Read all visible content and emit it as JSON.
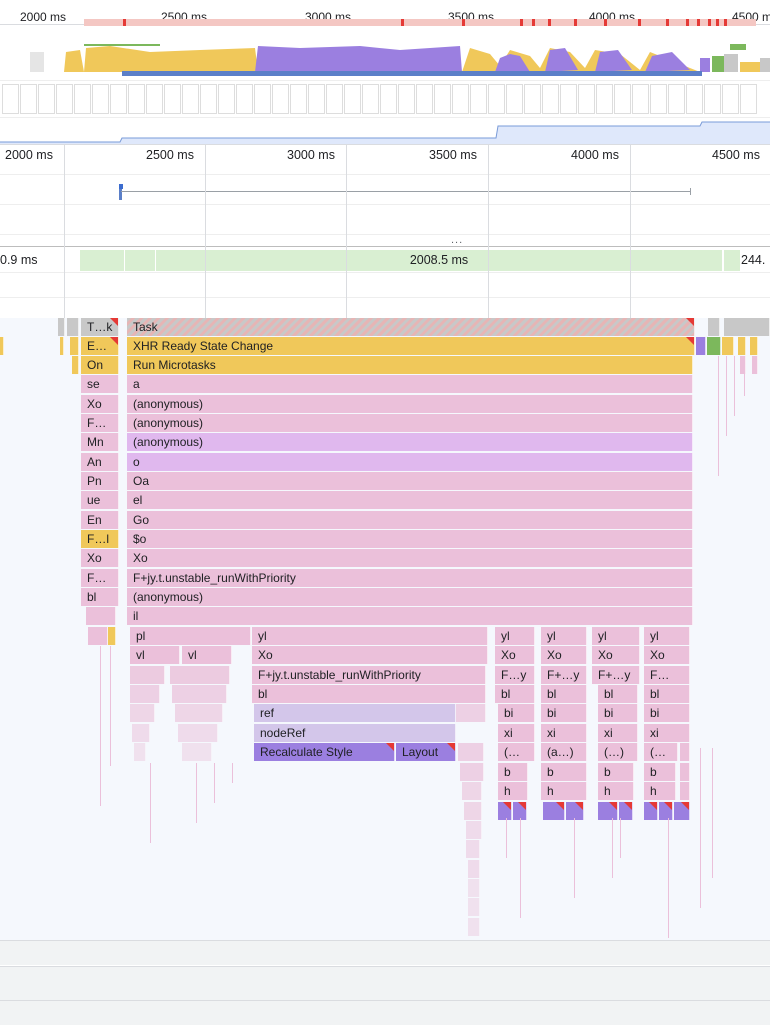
{
  "overview": {
    "ticks": [
      "2000 ms",
      "2500 ms",
      "3000 ms",
      "3500 ms",
      "4000 ms",
      "4500 m"
    ],
    "cpu_colors": {
      "scripting": "#f0c85a",
      "rendering": "#9b7fe0",
      "idle": "#c8c8c8",
      "painting": "#7cb85c"
    },
    "screenshots_icon": "screenshot-thumb-icon"
  },
  "main_ruler": {
    "ticks": [
      "2000 ms",
      "2500 ms",
      "3000 ms",
      "3500 ms",
      "4000 ms",
      "4500 ms"
    ]
  },
  "divider_handle": "...",
  "frames": {
    "left": "0.9 ms",
    "center": "2008.5 ms",
    "right": "244."
  },
  "flame": {
    "left_column": [
      "T…k",
      "E…",
      "On",
      "se",
      "Xo",
      "F…",
      "Mn",
      "An",
      "Pn",
      "ue",
      "En",
      "F…l",
      "Xo",
      "F…",
      "bl"
    ],
    "main_column": [
      "Task",
      "XHR Ready State Change",
      "Run Microtasks",
      "a",
      "(anonymous)",
      "(anonymous)",
      "(anonymous)",
      "o",
      "Oa",
      "el",
      "Go",
      "$o",
      "Xo",
      "F+jy.t.unstable_runWithPriority",
      "(anonymous)",
      "il"
    ],
    "row_pl": {
      "pl": "pl",
      "yl": "yl"
    },
    "row_vl": {
      "vl1": "vl",
      "vl2": "vl",
      "xo": "Xo"
    },
    "row_run": "F+jy.t.unstable_runWithPriority",
    "row_bl": "bl",
    "row_ref": "ref",
    "row_noderef": "nodeRef",
    "recalc": "Recalculate Style",
    "layout": "Layout",
    "cols": [
      {
        "yl": "yl",
        "xo": "Xo",
        "f": "F…y",
        "bl": "bl",
        "bi": "bi",
        "xi": "xi",
        "an": "(…",
        "b": "b",
        "h": "h"
      },
      {
        "yl": "yl",
        "xo": "Xo",
        "f": "F+…y",
        "bl": "bl",
        "bi": "bi",
        "xi": "xi",
        "an": "(a…)",
        "b": "b",
        "h": "h"
      },
      {
        "yl": "yl",
        "xo": "Xo",
        "f": "F+…y",
        "bl": "bl",
        "bi": "bi",
        "xi": "xi",
        "an": "(…)",
        "b": "b",
        "h": "h"
      },
      {
        "yl": "yl",
        "xo": "Xo",
        "f": "F…",
        "bl": "bl",
        "bi": "bi",
        "xi": "xi",
        "an": "(…",
        "b": "b",
        "h": "h"
      }
    ]
  }
}
